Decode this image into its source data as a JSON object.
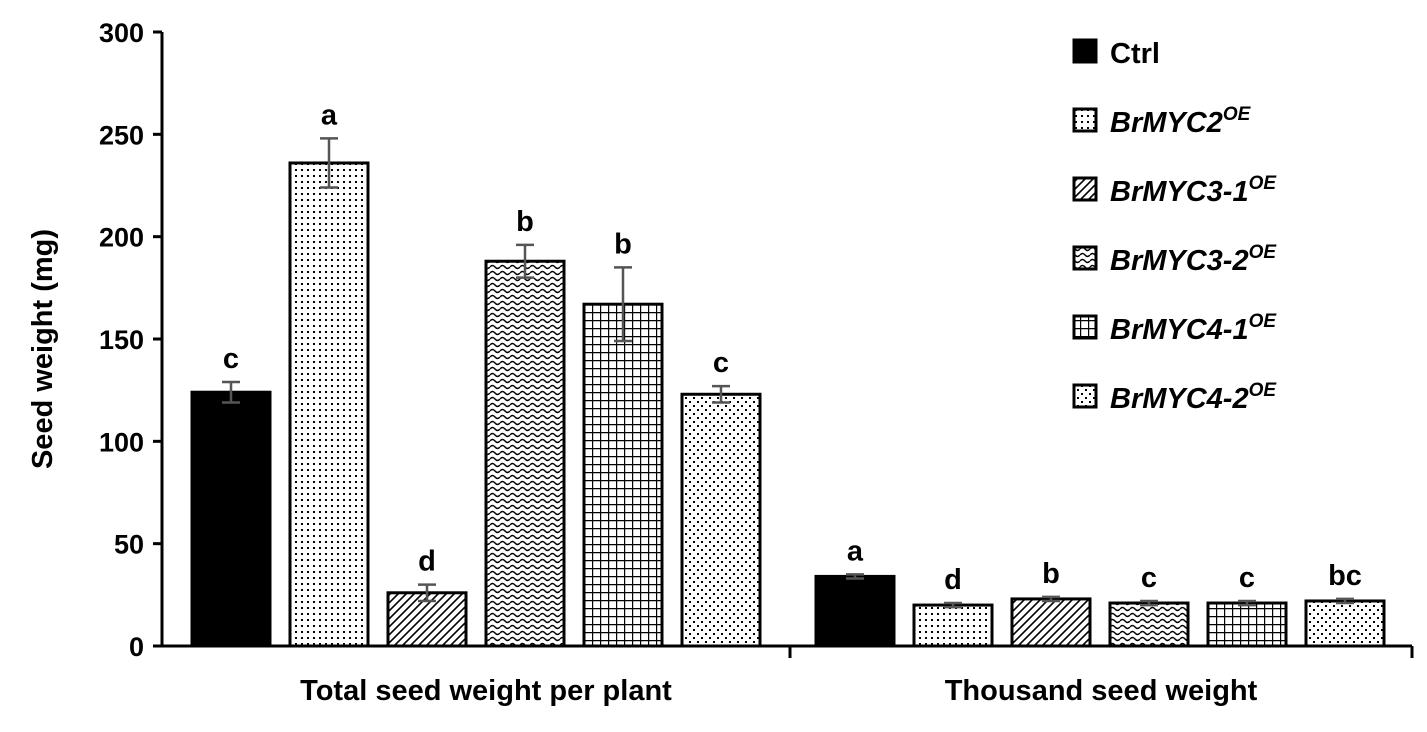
{
  "chart_data": {
    "type": "bar",
    "title": "",
    "xlabel": "",
    "ylabel": "Seed weight (mg)",
    "ylim": [
      0,
      300
    ],
    "yticks": [
      0,
      50,
      100,
      150,
      200,
      250,
      300
    ],
    "grid": false,
    "legend_position": "top-right",
    "categories": [
      "Total seed weight per plant",
      "Thousand seed weight"
    ],
    "series": [
      {
        "name": "Ctrl",
        "sup": "",
        "pattern": "solid",
        "values": [
          124,
          34
        ],
        "errors": [
          5,
          1
        ],
        "sig": [
          "c",
          "a"
        ]
      },
      {
        "name": "BrMYC2",
        "sup": "OE",
        "pattern": "dots",
        "values": [
          236,
          20
        ],
        "errors": [
          12,
          1
        ],
        "sig": [
          "a",
          "d"
        ]
      },
      {
        "name": "BrMYC3-1",
        "sup": "OE",
        "pattern": "diag",
        "values": [
          26,
          23
        ],
        "errors": [
          4,
          1
        ],
        "sig": [
          "d",
          "b"
        ]
      },
      {
        "name": "BrMYC3-2",
        "sup": "OE",
        "pattern": "wave",
        "values": [
          188,
          21
        ],
        "errors": [
          8,
          1
        ],
        "sig": [
          "b",
          "c"
        ]
      },
      {
        "name": "BrMYC4-1",
        "sup": "OE",
        "pattern": "grid",
        "values": [
          167,
          21
        ],
        "errors": [
          18,
          1
        ],
        "sig": [
          "b",
          "c"
        ]
      },
      {
        "name": "BrMYC4-2",
        "sup": "OE",
        "pattern": "sparse",
        "values": [
          123,
          22
        ],
        "errors": [
          4,
          1
        ],
        "sig": [
          "c",
          "bc"
        ]
      }
    ]
  }
}
